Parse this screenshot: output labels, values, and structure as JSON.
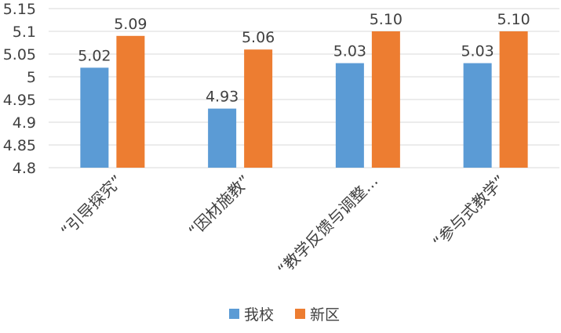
{
  "chart_data": {
    "type": "bar",
    "title": "",
    "xlabel": "",
    "ylabel": "",
    "categories": [
      "“引导探究”",
      "“因材施教”",
      "“教学反馈与调整…",
      "“参与式教学”"
    ],
    "series": [
      {
        "name": "我校",
        "values": [
          5.02,
          4.93,
          5.03,
          5.03
        ],
        "data_labels": [
          "5.02",
          "4.93",
          "5.03",
          "5.03"
        ],
        "color": "#5b9bd5"
      },
      {
        "name": "新区",
        "values": [
          5.09,
          5.06,
          5.1,
          5.1
        ],
        "data_labels": [
          "5.09",
          "5.06",
          "5.10",
          "5.10"
        ],
        "color": "#ed7d31"
      }
    ],
    "ylim": [
      4.8,
      5.15
    ],
    "yticks": [
      4.8,
      4.85,
      4.9,
      4.95,
      5,
      5.05,
      5.1,
      5.15
    ],
    "ytick_labels": [
      "4.8",
      "4.85",
      "4.9",
      "4.95",
      "5",
      "5.05",
      "5.1",
      "5.15"
    ],
    "grid": true,
    "legend": "bottom"
  }
}
